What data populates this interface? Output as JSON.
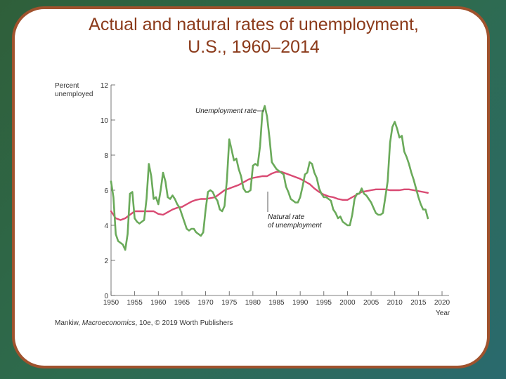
{
  "slide": {
    "title_line1": "Actual and natural rates of unemployment,",
    "title_line2": "U.S., 1960–2014",
    "credit_prefix": "Mankiw, ",
    "credit_book": "Macroeconomics",
    "credit_suffix": ", 10e, © 2019 Worth Publishers"
  },
  "chart_data": {
    "type": "line",
    "title": "Actual and natural rates of unemployment, U.S., 1960–2014",
    "ylabel_line1": "Percent",
    "ylabel_line2": "unemployed",
    "xlabel": "Year",
    "xlim": [
      1950,
      2020
    ],
    "ylim": [
      0,
      12
    ],
    "x_ticks": [
      "1950",
      "1955",
      "1960",
      "1965",
      "1970",
      "1975",
      "1980",
      "1985",
      "1990",
      "1995",
      "2000",
      "2005",
      "2010",
      "2015",
      "2020"
    ],
    "y_ticks": [
      "0",
      "2",
      "4",
      "6",
      "8",
      "10",
      "12"
    ],
    "colors": {
      "actual": "#6aaa5a",
      "natural": "#d94a73",
      "axis": "#555555"
    },
    "annotations": {
      "actual_label": "Unemployment rate",
      "natural_label_line1": "Natural rate",
      "natural_label_line2": "of unemployment"
    },
    "series": [
      {
        "name": "Unemployment rate",
        "x": [
          1950,
          1950.5,
          1951,
          1951.5,
          1952,
          1952.5,
          1953,
          1953.5,
          1954,
          1954.5,
          1955,
          1955.5,
          1956,
          1956.5,
          1957,
          1957.5,
          1958,
          1958.5,
          1959,
          1959.5,
          1960,
          1960.5,
          1961,
          1961.5,
          1962,
          1962.5,
          1963,
          1963.5,
          1964,
          1964.5,
          1965,
          1965.5,
          1966,
          1966.5,
          1967,
          1967.5,
          1968,
          1968.5,
          1969,
          1969.5,
          1970,
          1970.5,
          1971,
          1971.5,
          1972,
          1972.5,
          1973,
          1973.5,
          1974,
          1974.5,
          1975,
          1975.5,
          1976,
          1976.5,
          1977,
          1977.5,
          1978,
          1978.5,
          1979,
          1979.5,
          1980,
          1980.5,
          1981,
          1981.5,
          1982,
          1982.5,
          1983,
          1983.5,
          1984,
          1984.5,
          1985,
          1985.5,
          1986,
          1986.5,
          1987,
          1987.5,
          1988,
          1988.5,
          1989,
          1989.5,
          1990,
          1990.5,
          1991,
          1991.5,
          1992,
          1992.5,
          1993,
          1993.5,
          1994,
          1994.5,
          1995,
          1995.5,
          1996,
          1996.5,
          1997,
          1997.5,
          1998,
          1998.5,
          1999,
          1999.5,
          2000,
          2000.5,
          2001,
          2001.5,
          2002,
          2002.5,
          2003,
          2003.5,
          2004,
          2004.5,
          2005,
          2005.5,
          2006,
          2006.5,
          2007,
          2007.5,
          2008,
          2008.5,
          2009,
          2009.5,
          2010,
          2010.5,
          2011,
          2011.5,
          2012,
          2012.5,
          2013,
          2013.5,
          2014,
          2014.5,
          2015,
          2015.5,
          2016,
          2016.5,
          2017
        ],
        "values": [
          6.5,
          5.6,
          3.5,
          3.1,
          3.0,
          2.9,
          2.6,
          3.5,
          5.8,
          5.9,
          4.4,
          4.2,
          4.1,
          4.2,
          4.3,
          5.5,
          7.5,
          6.8,
          5.5,
          5.6,
          5.2,
          6.0,
          7.0,
          6.5,
          5.6,
          5.5,
          5.7,
          5.5,
          5.2,
          5.0,
          4.6,
          4.2,
          3.8,
          3.7,
          3.8,
          3.8,
          3.6,
          3.5,
          3.4,
          3.6,
          4.9,
          5.9,
          6.0,
          5.9,
          5.6,
          5.4,
          4.9,
          4.8,
          5.1,
          6.6,
          8.9,
          8.3,
          7.7,
          7.8,
          7.2,
          6.8,
          6.1,
          5.9,
          5.9,
          6.0,
          7.4,
          7.5,
          7.4,
          8.5,
          10.4,
          10.8,
          10.2,
          9.0,
          7.6,
          7.4,
          7.2,
          7.1,
          7.0,
          6.9,
          6.2,
          5.9,
          5.5,
          5.4,
          5.3,
          5.3,
          5.6,
          6.2,
          6.9,
          7.0,
          7.6,
          7.5,
          7.0,
          6.7,
          6.1,
          5.8,
          5.6,
          5.6,
          5.5,
          5.4,
          4.9,
          4.7,
          4.4,
          4.5,
          4.2,
          4.1,
          4.0,
          4.0,
          4.6,
          5.5,
          5.8,
          5.8,
          6.1,
          5.8,
          5.7,
          5.5,
          5.3,
          5.0,
          4.7,
          4.6,
          4.6,
          4.7,
          5.6,
          6.5,
          8.7,
          9.6,
          9.9,
          9.5,
          9.0,
          9.1,
          8.2,
          7.9,
          7.5,
          7.0,
          6.6,
          6.1,
          5.6,
          5.2,
          4.9,
          4.9,
          4.4
        ]
      },
      {
        "name": "Natural rate of unemployment",
        "x": [
          1950,
          1951,
          1952,
          1953,
          1954,
          1955,
          1956,
          1957,
          1958,
          1959,
          1960,
          1961,
          1962,
          1963,
          1964,
          1965,
          1966,
          1967,
          1968,
          1969,
          1970,
          1971,
          1972,
          1973,
          1974,
          1975,
          1976,
          1977,
          1978,
          1979,
          1980,
          1981,
          1982,
          1983,
          1984,
          1985,
          1986,
          1987,
          1988,
          1989,
          1990,
          1991,
          1992,
          1993,
          1994,
          1995,
          1996,
          1997,
          1998,
          1999,
          2000,
          2001,
          2002,
          2003,
          2004,
          2005,
          2006,
          2007,
          2008,
          2009,
          2010,
          2011,
          2012,
          2013,
          2014,
          2015,
          2016,
          2017
        ],
        "values": [
          4.8,
          4.4,
          4.3,
          4.4,
          4.6,
          4.8,
          4.8,
          4.8,
          4.8,
          4.8,
          4.65,
          4.6,
          4.75,
          4.9,
          5.0,
          5.05,
          5.2,
          5.35,
          5.45,
          5.5,
          5.5,
          5.55,
          5.6,
          5.8,
          6.0,
          6.1,
          6.2,
          6.3,
          6.45,
          6.6,
          6.7,
          6.75,
          6.8,
          6.8,
          6.95,
          7.05,
          7.05,
          6.95,
          6.85,
          6.75,
          6.65,
          6.5,
          6.35,
          6.1,
          5.9,
          5.75,
          5.65,
          5.6,
          5.5,
          5.45,
          5.45,
          5.6,
          5.75,
          5.9,
          5.95,
          6.0,
          6.05,
          6.05,
          6.05,
          6.0,
          6.0,
          6.0,
          6.05,
          6.05,
          6.0,
          5.95,
          5.9,
          5.85
        ]
      }
    ]
  }
}
